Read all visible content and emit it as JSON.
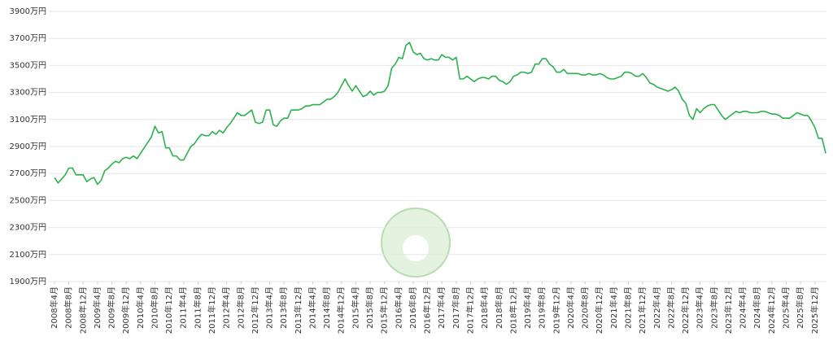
{
  "chart_data": {
    "type": "line",
    "color": "#2bb24c",
    "grid": true,
    "ylim": [
      1900,
      3900
    ],
    "yticks": [
      {
        "value": 1900,
        "label": "1900万円"
      },
      {
        "value": 2100,
        "label": "2100万円"
      },
      {
        "value": 2300,
        "label": "2300万円"
      },
      {
        "value": 2500,
        "label": "2500万円"
      },
      {
        "value": 2700,
        "label": "2700万円"
      },
      {
        "value": 2900,
        "label": "2900万円"
      },
      {
        "value": 3100,
        "label": "3100万円"
      },
      {
        "value": 3300,
        "label": "3300万円"
      },
      {
        "value": 3500,
        "label": "3500万円"
      },
      {
        "value": 3700,
        "label": "3700万円"
      },
      {
        "value": 3900,
        "label": "3900万円"
      }
    ],
    "categories": [
      "2008年4月",
      null,
      null,
      null,
      "2008年8月",
      null,
      null,
      null,
      "2008年12月",
      null,
      null,
      null,
      "2009年4月",
      null,
      null,
      null,
      "2009年8月",
      null,
      null,
      null,
      "2009年12月",
      null,
      null,
      null,
      "2010年4月",
      null,
      null,
      null,
      "2010年8月",
      null,
      null,
      null,
      "2010年12月",
      null,
      null,
      null,
      "2011年4月",
      null,
      null,
      null,
      "2011年8月",
      null,
      null,
      null,
      "2011年12月",
      null,
      null,
      null,
      "2012年4月",
      null,
      null,
      null,
      "2012年8月",
      null,
      null,
      null,
      "2012年12月",
      null,
      null,
      null,
      "2013年4月",
      null,
      null,
      null,
      "2013年8月",
      null,
      null,
      null,
      "2013年12月",
      null,
      null,
      null,
      "2014年4月",
      null,
      null,
      null,
      "2014年8月",
      null,
      null,
      null,
      "2014年12月",
      null,
      null,
      null,
      "2015年4月",
      null,
      null,
      null,
      "2015年8月",
      null,
      null,
      null,
      "2015年12月",
      null,
      null,
      null,
      "2016年4月",
      null,
      null,
      null,
      "2016年8月",
      null,
      null,
      null,
      "2016年12月",
      null,
      null,
      null,
      "2017年4月",
      null,
      null,
      null,
      "2017年8月",
      null,
      null,
      null,
      "2017年12月",
      null,
      null,
      null,
      "2018年4月",
      null,
      null,
      null,
      "2018年8月",
      null,
      null,
      null,
      "2018年12月",
      null,
      null,
      null,
      "2019年4月",
      null,
      null,
      null,
      "2019年8月",
      null,
      null,
      null,
      "2019年12月",
      null,
      null,
      null,
      "2020年4月",
      null,
      null,
      null,
      "2020年8月",
      null,
      null,
      null,
      "2020年12月",
      null,
      null,
      null,
      "2021年4月",
      null,
      null,
      null,
      "2021年8月",
      null,
      null,
      null,
      "2021年12月",
      null,
      null,
      null,
      "2022年4月",
      null,
      null,
      null,
      "2022年8月",
      null,
      null,
      null,
      "2022年12月",
      null,
      null,
      null,
      "2023年4月",
      null,
      null,
      null,
      "2023年8月",
      null,
      null,
      null,
      "2023年12月",
      null,
      null,
      null,
      "2024年4月",
      null,
      null,
      null,
      "2024年8月",
      null,
      null,
      null,
      "2024年12月",
      null,
      null,
      null,
      "2025年4月",
      null,
      null,
      null,
      "2025年8月",
      null,
      null,
      null,
      "2025年12月",
      null,
      null,
      null
    ],
    "values": [
      2670,
      2630,
      2660,
      2690,
      2740,
      2740,
      2690,
      2690,
      2690,
      2640,
      2660,
      2670,
      2620,
      2650,
      2720,
      2740,
      2770,
      2790,
      2780,
      2810,
      2820,
      2810,
      2830,
      2810,
      2850,
      2890,
      2930,
      2970,
      3050,
      3000,
      3010,
      2890,
      2890,
      2830,
      2830,
      2800,
      2800,
      2850,
      2900,
      2920,
      2960,
      2990,
      2980,
      2980,
      3010,
      2990,
      3020,
      3000,
      3040,
      3070,
      3110,
      3150,
      3130,
      3130,
      3150,
      3170,
      3080,
      3070,
      3080,
      3170,
      3170,
      3060,
      3050,
      3090,
      3110,
      3110,
      3170,
      3170,
      3170,
      3180,
      3200,
      3200,
      3210,
      3210,
      3210,
      3230,
      3250,
      3250,
      3270,
      3300,
      3350,
      3400,
      3350,
      3310,
      3350,
      3310,
      3270,
      3280,
      3310,
      3280,
      3300,
      3300,
      3310,
      3350,
      3480,
      3510,
      3560,
      3550,
      3650,
      3670,
      3600,
      3580,
      3590,
      3550,
      3540,
      3550,
      3540,
      3540,
      3580,
      3560,
      3560,
      3540,
      3560,
      3400,
      3400,
      3420,
      3400,
      3380,
      3400,
      3410,
      3410,
      3400,
      3420,
      3420,
      3390,
      3380,
      3360,
      3380,
      3420,
      3430,
      3450,
      3450,
      3440,
      3450,
      3510,
      3510,
      3550,
      3550,
      3510,
      3490,
      3450,
      3450,
      3470,
      3440,
      3440,
      3440,
      3440,
      3430,
      3430,
      3440,
      3430,
      3430,
      3440,
      3430,
      3410,
      3400,
      3400,
      3410,
      3420,
      3450,
      3450,
      3440,
      3420,
      3420,
      3440,
      3410,
      3370,
      3360,
      3340,
      3330,
      3320,
      3310,
      3320,
      3340,
      3310,
      3250,
      3220,
      3130,
      3100,
      3180,
      3150,
      3180,
      3200,
      3210,
      3210,
      3170,
      3130,
      3100,
      3120,
      3140,
      3160,
      3150,
      3160,
      3160,
      3150,
      3150,
      3150,
      3160,
      3160,
      3150,
      3140,
      3140,
      3130,
      3110,
      3110,
      3110,
      3130,
      3150,
      3140,
      3130,
      3130,
      3090,
      3040,
      2960,
      2960,
      2850
    ]
  }
}
